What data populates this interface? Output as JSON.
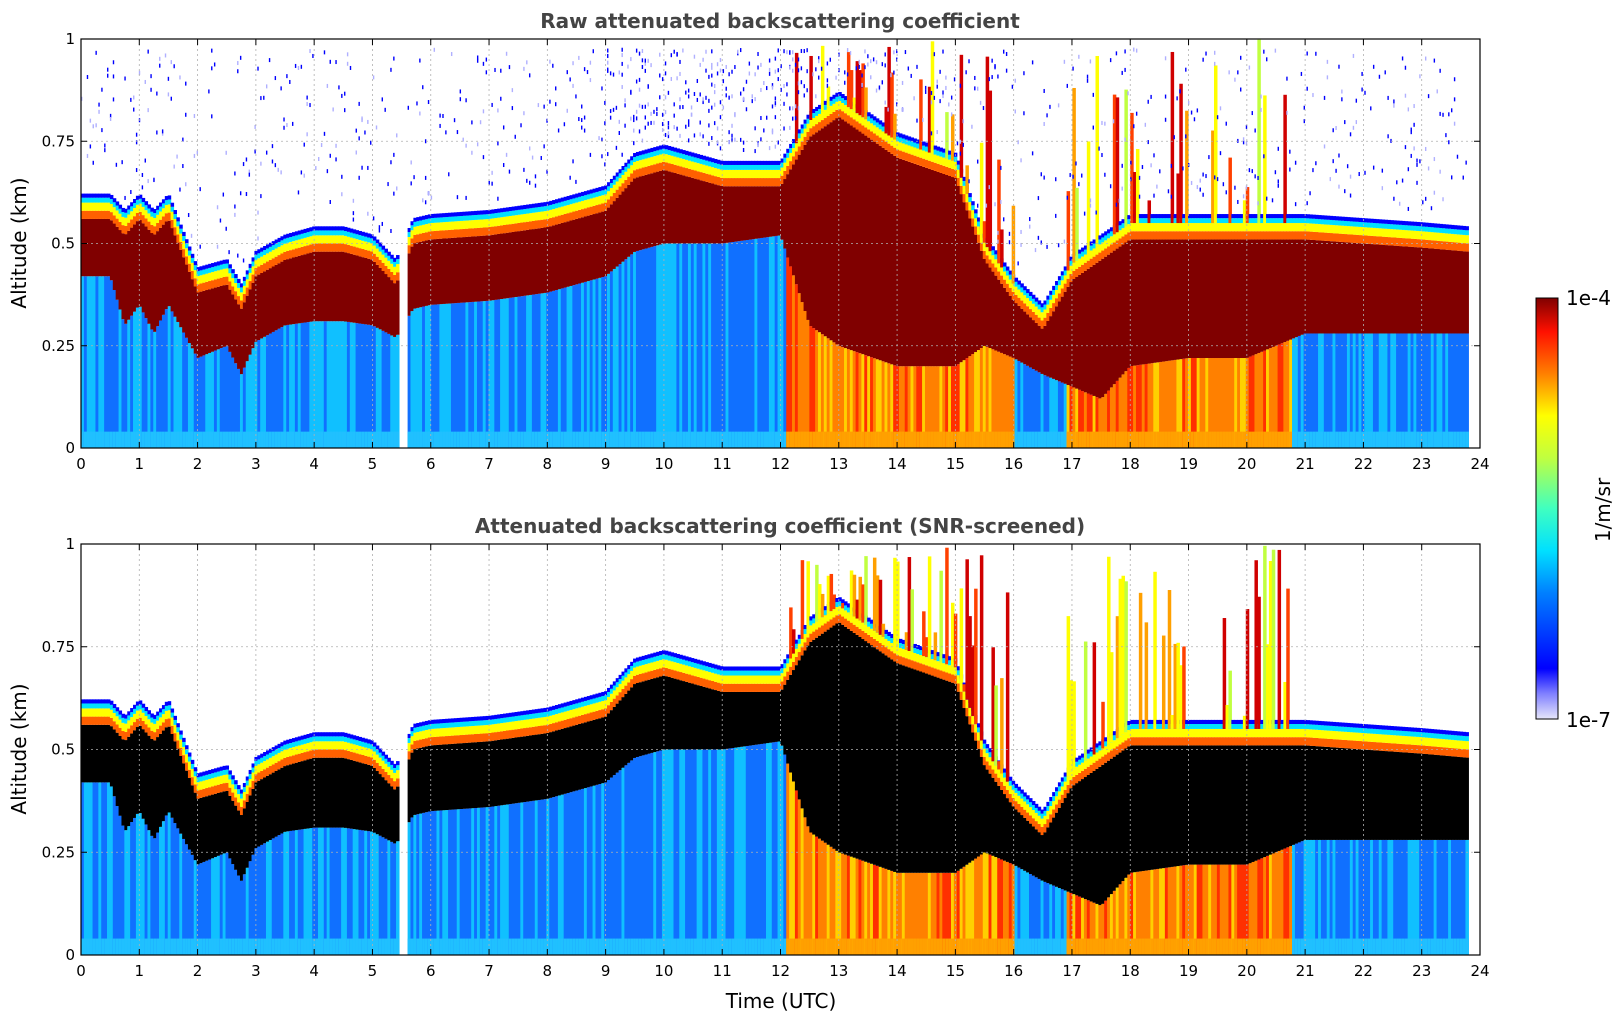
{
  "chart_data": [
    {
      "type": "heatmap",
      "title": "Raw attenuated backscattering coefficient",
      "xlabel": "",
      "ylabel": "Altitude (km)",
      "xlim": [
        0,
        24
      ],
      "ylim": [
        0,
        1
      ],
      "x_ticks": [
        "0",
        "1",
        "2",
        "3",
        "4",
        "5",
        "6",
        "7",
        "8",
        "9",
        "10",
        "11",
        "12",
        "13",
        "14",
        "15",
        "16",
        "17",
        "18",
        "19",
        "20",
        "21",
        "22",
        "23",
        "24"
      ],
      "y_ticks": [
        "0",
        "0.25",
        "0.5",
        "0.75",
        "1"
      ],
      "grid": true,
      "screened": false
    },
    {
      "type": "heatmap",
      "title": "Attenuated backscattering coefficient (SNR-screened)",
      "xlabel": "Time (UTC)",
      "ylabel": "Altitude (km)",
      "xlim": [
        0,
        24
      ],
      "ylim": [
        0,
        1
      ],
      "x_ticks": [
        "0",
        "1",
        "2",
        "3",
        "4",
        "5",
        "6",
        "7",
        "8",
        "9",
        "10",
        "11",
        "12",
        "13",
        "14",
        "15",
        "16",
        "17",
        "18",
        "19",
        "20",
        "21",
        "22",
        "23",
        "24"
      ],
      "y_ticks": [
        "0",
        "0.25",
        "0.5",
        "0.75",
        "1"
      ],
      "grid": true,
      "screened": true
    }
  ],
  "colorbar": {
    "label": "1/m/sr",
    "max_label": "1e-4",
    "min_label": "1e-7",
    "scale": "log",
    "colormap": "jet"
  },
  "layer_profile": {
    "description_units": "time in UTC hours, altitude in km",
    "time": [
      0,
      0.5,
      0.75,
      1,
      1.25,
      1.5,
      2,
      2.5,
      2.75,
      3,
      3.5,
      4,
      4.5,
      5,
      5.4,
      5.7,
      6,
      7,
      8,
      8.5,
      9,
      9.5,
      10,
      11,
      12,
      12.5,
      13,
      14,
      15,
      15.5,
      16,
      16.5,
      17,
      17.5,
      18,
      19,
      20,
      21,
      22,
      23,
      23.8
    ],
    "base": [
      0.42,
      0.42,
      0.3,
      0.35,
      0.28,
      0.35,
      0.22,
      0.25,
      0.18,
      0.26,
      0.3,
      0.31,
      0.31,
      0.3,
      0.27,
      0.34,
      0.35,
      0.36,
      0.38,
      0.4,
      0.42,
      0.48,
      0.5,
      0.5,
      0.52,
      0.3,
      0.25,
      0.2,
      0.2,
      0.25,
      0.22,
      0.18,
      0.15,
      0.12,
      0.2,
      0.22,
      0.22,
      0.28,
      0.28,
      0.28,
      0.28
    ],
    "top": [
      0.6,
      0.6,
      0.56,
      0.6,
      0.56,
      0.6,
      0.42,
      0.44,
      0.38,
      0.46,
      0.5,
      0.52,
      0.52,
      0.5,
      0.44,
      0.54,
      0.55,
      0.56,
      0.58,
      0.6,
      0.62,
      0.7,
      0.72,
      0.68,
      0.68,
      0.8,
      0.85,
      0.75,
      0.7,
      0.5,
      0.4,
      0.33,
      0.45,
      0.5,
      0.55,
      0.55,
      0.55,
      0.55,
      0.54,
      0.53,
      0.52
    ]
  }
}
